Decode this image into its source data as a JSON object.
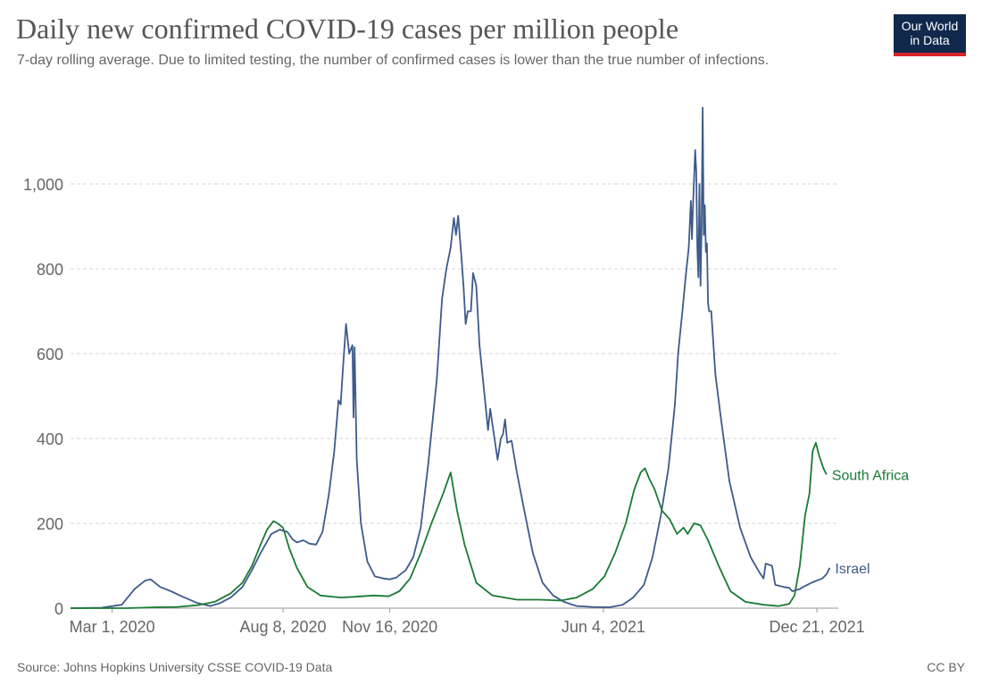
{
  "header": {
    "title": "Daily new confirmed COVID-19 cases per million people",
    "subtitle": "7-day rolling average. Due to limited testing, the number of confirmed cases is lower than the true number of infections."
  },
  "logo": {
    "line1": "Our World",
    "line2": "in Data",
    "bg_color": "#10294d",
    "accent_color": "#d8232a"
  },
  "footer": {
    "source": "Source: Johns Hopkins University CSSE COVID-19 Data",
    "license": "CC BY"
  },
  "chart_data": {
    "type": "line",
    "title": "Daily new confirmed COVID-19 cases per million people",
    "xlabel": "",
    "ylabel": "",
    "x_range": [
      "2020-01-22",
      "2022-01-10"
    ],
    "x_ticks": [
      "2020-03-01",
      "2020-08-08",
      "2020-11-16",
      "2021-06-04",
      "2021-12-21"
    ],
    "x_tick_labels": [
      "Mar 1, 2020",
      "Aug 8, 2020",
      "Nov 16, 2020",
      "Jun 4, 2021",
      "Dec 21, 2021"
    ],
    "ylim": [
      0,
      1200
    ],
    "y_ticks": [
      0,
      200,
      400,
      600,
      800,
      1000
    ],
    "y_tick_labels": [
      "0",
      "200",
      "400",
      "600",
      "800",
      "1,000"
    ],
    "grid": "horizontal dashed",
    "series": [
      {
        "name": "Israel",
        "color": "#3d5a8a",
        "points": [
          [
            "2020-01-22",
            0
          ],
          [
            "2020-02-20",
            1
          ],
          [
            "2020-03-10",
            8
          ],
          [
            "2020-03-22",
            45
          ],
          [
            "2020-04-01",
            65
          ],
          [
            "2020-04-06",
            68
          ],
          [
            "2020-04-15",
            50
          ],
          [
            "2020-04-25",
            40
          ],
          [
            "2020-05-05",
            28
          ],
          [
            "2020-05-20",
            12
          ],
          [
            "2020-06-01",
            5
          ],
          [
            "2020-06-10",
            12
          ],
          [
            "2020-06-20",
            25
          ],
          [
            "2020-07-01",
            50
          ],
          [
            "2020-07-10",
            90
          ],
          [
            "2020-07-18",
            130
          ],
          [
            "2020-07-28",
            175
          ],
          [
            "2020-08-05",
            185
          ],
          [
            "2020-08-12",
            180
          ],
          [
            "2020-08-17",
            162
          ],
          [
            "2020-08-21",
            155
          ],
          [
            "2020-08-27",
            160
          ],
          [
            "2020-09-02",
            152
          ],
          [
            "2020-09-08",
            150
          ],
          [
            "2020-09-14",
            180
          ],
          [
            "2020-09-20",
            270
          ],
          [
            "2020-09-25",
            370
          ],
          [
            "2020-09-29",
            490
          ],
          [
            "2020-10-01",
            480
          ],
          [
            "2020-10-03",
            560
          ],
          [
            "2020-10-06",
            670
          ],
          [
            "2020-10-09",
            600
          ],
          [
            "2020-10-12",
            620
          ],
          [
            "2020-10-13",
            450
          ],
          [
            "2020-10-14",
            615
          ],
          [
            "2020-10-16",
            350
          ],
          [
            "2020-10-20",
            200
          ],
          [
            "2020-10-26",
            110
          ],
          [
            "2020-11-02",
            75
          ],
          [
            "2020-11-10",
            70
          ],
          [
            "2020-11-16",
            68
          ],
          [
            "2020-11-22",
            72
          ],
          [
            "2020-12-01",
            90
          ],
          [
            "2020-12-08",
            120
          ],
          [
            "2020-12-15",
            190
          ],
          [
            "2020-12-22",
            340
          ],
          [
            "2020-12-30",
            540
          ],
          [
            "2021-01-04",
            730
          ],
          [
            "2021-01-08",
            800
          ],
          [
            "2021-01-12",
            850
          ],
          [
            "2021-01-15",
            920
          ],
          [
            "2021-01-17",
            880
          ],
          [
            "2021-01-19",
            925
          ],
          [
            "2021-01-22",
            830
          ],
          [
            "2021-01-24",
            760
          ],
          [
            "2021-01-26",
            670
          ],
          [
            "2021-01-28",
            700
          ],
          [
            "2021-01-31",
            700
          ],
          [
            "2021-02-02",
            790
          ],
          [
            "2021-02-05",
            760
          ],
          [
            "2021-02-08",
            620
          ],
          [
            "2021-02-12",
            520
          ],
          [
            "2021-02-16",
            420
          ],
          [
            "2021-02-18",
            470
          ],
          [
            "2021-02-22",
            400
          ],
          [
            "2021-02-25",
            350
          ],
          [
            "2021-02-28",
            400
          ],
          [
            "2021-03-02",
            410
          ],
          [
            "2021-03-04",
            445
          ],
          [
            "2021-03-06",
            390
          ],
          [
            "2021-03-10",
            395
          ],
          [
            "2021-03-15",
            320
          ],
          [
            "2021-03-22",
            230
          ],
          [
            "2021-03-30",
            130
          ],
          [
            "2021-04-08",
            60
          ],
          [
            "2021-04-18",
            30
          ],
          [
            "2021-04-28",
            15
          ],
          [
            "2021-05-10",
            5
          ],
          [
            "2021-05-25",
            3
          ],
          [
            "2021-06-10",
            2
          ],
          [
            "2021-06-22",
            8
          ],
          [
            "2021-07-02",
            25
          ],
          [
            "2021-07-12",
            55
          ],
          [
            "2021-07-20",
            120
          ],
          [
            "2021-07-28",
            220
          ],
          [
            "2021-08-04",
            330
          ],
          [
            "2021-08-10",
            480
          ],
          [
            "2021-08-13",
            600
          ],
          [
            "2021-08-17",
            700
          ],
          [
            "2021-08-20",
            780
          ],
          [
            "2021-08-23",
            850
          ],
          [
            "2021-08-25",
            960
          ],
          [
            "2021-08-26",
            870
          ],
          [
            "2021-08-27",
            950
          ],
          [
            "2021-08-29",
            1080
          ],
          [
            "2021-08-30",
            1030
          ],
          [
            "2021-08-31",
            850
          ],
          [
            "2021-09-01",
            780
          ],
          [
            "2021-09-02",
            1000
          ],
          [
            "2021-09-03",
            760
          ],
          [
            "2021-09-04",
            900
          ],
          [
            "2021-09-05",
            1180
          ],
          [
            "2021-09-06",
            880
          ],
          [
            "2021-09-07",
            950
          ],
          [
            "2021-09-08",
            840
          ],
          [
            "2021-09-09",
            860
          ],
          [
            "2021-09-10",
            720
          ],
          [
            "2021-09-11",
            700
          ],
          [
            "2021-09-13",
            700
          ],
          [
            "2021-09-17",
            550
          ],
          [
            "2021-09-22",
            450
          ],
          [
            "2021-09-30",
            300
          ],
          [
            "2021-10-10",
            190
          ],
          [
            "2021-10-20",
            120
          ],
          [
            "2021-10-28",
            85
          ],
          [
            "2021-11-01",
            70
          ],
          [
            "2021-11-03",
            105
          ],
          [
            "2021-11-09",
            100
          ],
          [
            "2021-11-12",
            55
          ],
          [
            "2021-11-20",
            50
          ],
          [
            "2021-11-25",
            48
          ],
          [
            "2021-11-28",
            40
          ],
          [
            "2021-12-05",
            45
          ],
          [
            "2021-12-08",
            50
          ],
          [
            "2021-12-12",
            55
          ],
          [
            "2021-12-16",
            60
          ],
          [
            "2021-12-21",
            65
          ],
          [
            "2021-12-26",
            70
          ],
          [
            "2021-12-30",
            80
          ],
          [
            "2022-01-02",
            95
          ]
        ]
      },
      {
        "name": "South Africa",
        "color": "#1a7a34",
        "points": [
          [
            "2020-01-22",
            0
          ],
          [
            "2020-03-15",
            0
          ],
          [
            "2020-04-10",
            2
          ],
          [
            "2020-05-01",
            3
          ],
          [
            "2020-05-20",
            7
          ],
          [
            "2020-06-05",
            15
          ],
          [
            "2020-06-20",
            35
          ],
          [
            "2020-07-01",
            60
          ],
          [
            "2020-07-10",
            100
          ],
          [
            "2020-07-18",
            150
          ],
          [
            "2020-07-24",
            185
          ],
          [
            "2020-07-30",
            205
          ],
          [
            "2020-08-03",
            200
          ],
          [
            "2020-08-08",
            190
          ],
          [
            "2020-08-14",
            140
          ],
          [
            "2020-08-21",
            95
          ],
          [
            "2020-08-31",
            50
          ],
          [
            "2020-09-12",
            30
          ],
          [
            "2020-10-01",
            25
          ],
          [
            "2020-10-15",
            27
          ],
          [
            "2020-11-01",
            30
          ],
          [
            "2020-11-15",
            28
          ],
          [
            "2020-11-25",
            40
          ],
          [
            "2020-12-05",
            70
          ],
          [
            "2020-12-15",
            130
          ],
          [
            "2020-12-25",
            200
          ],
          [
            "2021-01-05",
            270
          ],
          [
            "2021-01-12",
            320
          ],
          [
            "2021-01-18",
            230
          ],
          [
            "2021-01-25",
            150
          ],
          [
            "2021-02-05",
            60
          ],
          [
            "2021-02-20",
            30
          ],
          [
            "2021-03-15",
            20
          ],
          [
            "2021-04-05",
            20
          ],
          [
            "2021-04-25",
            18
          ],
          [
            "2021-05-10",
            25
          ],
          [
            "2021-05-25",
            45
          ],
          [
            "2021-06-05",
            75
          ],
          [
            "2021-06-15",
            130
          ],
          [
            "2021-06-25",
            200
          ],
          [
            "2021-07-03",
            280
          ],
          [
            "2021-07-09",
            320
          ],
          [
            "2021-07-13",
            330
          ],
          [
            "2021-07-17",
            305
          ],
          [
            "2021-07-22",
            280
          ],
          [
            "2021-07-29",
            230
          ],
          [
            "2021-08-05",
            210
          ],
          [
            "2021-08-12",
            175
          ],
          [
            "2021-08-18",
            190
          ],
          [
            "2021-08-22",
            175
          ],
          [
            "2021-08-28",
            200
          ],
          [
            "2021-09-03",
            195
          ],
          [
            "2021-09-10",
            160
          ],
          [
            "2021-09-20",
            100
          ],
          [
            "2021-10-01",
            40
          ],
          [
            "2021-10-15",
            15
          ],
          [
            "2021-11-01",
            8
          ],
          [
            "2021-11-15",
            5
          ],
          [
            "2021-11-25",
            10
          ],
          [
            "2021-11-30",
            30
          ],
          [
            "2021-12-05",
            100
          ],
          [
            "2021-12-10",
            220
          ],
          [
            "2021-12-14",
            270
          ],
          [
            "2021-12-17",
            370
          ],
          [
            "2021-12-20",
            390
          ],
          [
            "2021-12-23",
            360
          ],
          [
            "2021-12-27",
            330
          ],
          [
            "2021-12-30",
            315
          ]
        ]
      }
    ]
  }
}
